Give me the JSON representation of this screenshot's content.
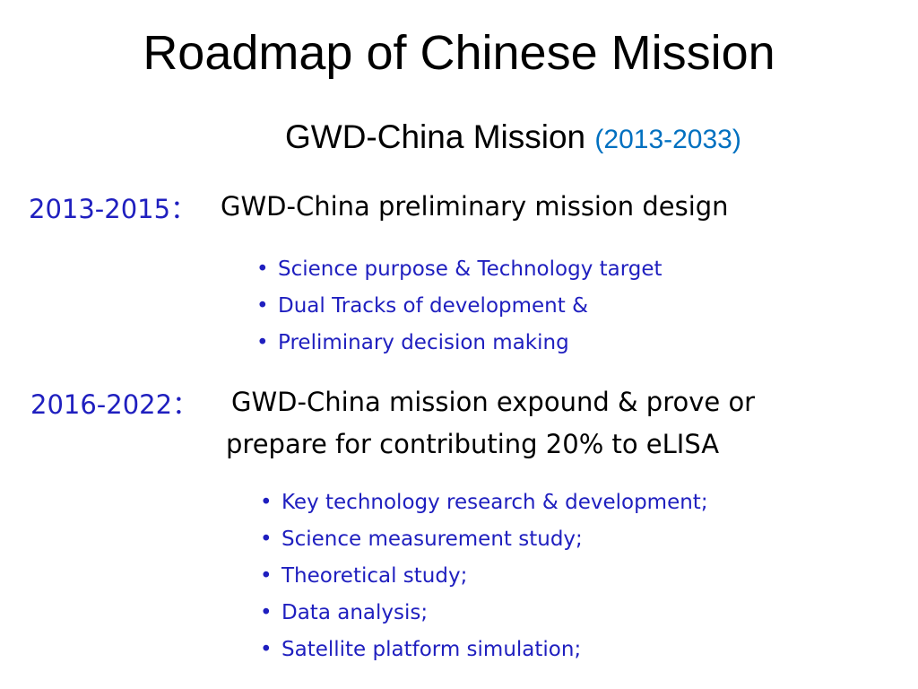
{
  "title": "Roadmap of Chinese Mission",
  "subtitle": {
    "text": "GWD-China Mission ",
    "years": "(2013-2033)"
  },
  "phases": [
    {
      "period": "2013-2015：",
      "description_line1": "GWD-China preliminary mission design",
      "description_line2": "",
      "bullets": [
        "Science purpose & Technology target",
        "Dual Tracks of development &",
        "Preliminary decision making"
      ]
    },
    {
      "period": "2016-2022：",
      "description_line1": "GWD-China mission expound & prove or",
      "description_line2": "prepare for contributing 20% to eLISA",
      "bullets": [
        "Key technology research & development;",
        "Science measurement study;",
        "Theoretical study;",
        "Data analysis;",
        "Satellite platform simulation;"
      ]
    }
  ],
  "bullet_glyph": "•",
  "colors": {
    "accent_blue": "#1f1fbf",
    "years_blue": "#0070c0",
    "text": "#000000"
  }
}
